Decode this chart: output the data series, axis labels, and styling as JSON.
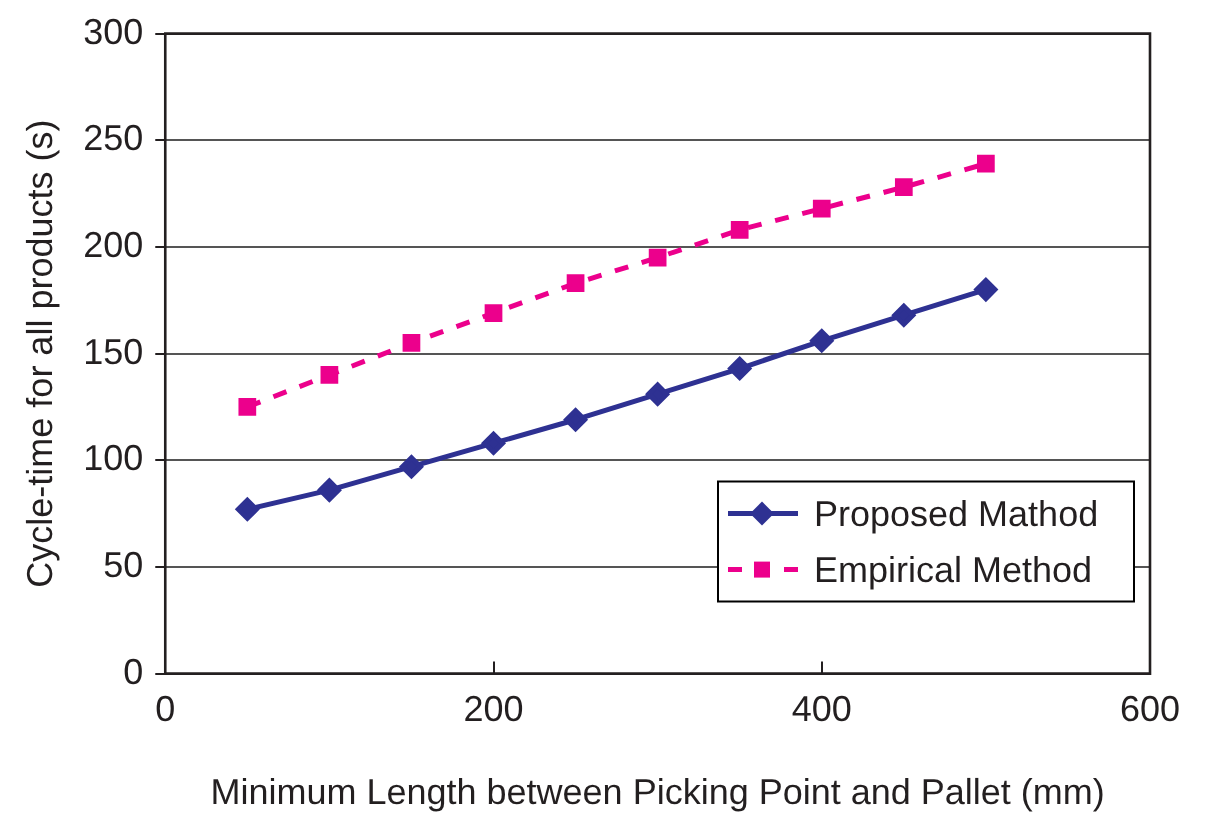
{
  "chart_data": {
    "type": "line",
    "xlabel": "Minimum Length between Picking Point and Pallet (mm)",
    "ylabel": "Cycle-time for all products (s)",
    "x": [
      50,
      100,
      150,
      200,
      250,
      300,
      350,
      400,
      450,
      500
    ],
    "series": [
      {
        "name": "Proposed Mathod",
        "color": "#2e3192",
        "values": [
          77,
          86,
          97,
          108,
          119,
          131,
          143,
          156,
          168,
          180
        ],
        "marker": "diamond",
        "line_style": "solid"
      },
      {
        "name": "Empirical Method",
        "color": "#ec008c",
        "values": [
          125,
          140,
          155,
          169,
          183,
          195,
          208,
          218,
          228,
          239
        ],
        "marker": "square",
        "line_style": "dashed"
      }
    ],
    "xlim": [
      0,
      600
    ],
    "xticks": [
      0,
      200,
      400,
      600
    ],
    "ylim": [
      0,
      300
    ],
    "yticks": [
      0,
      50,
      100,
      150,
      200,
      250,
      300
    ],
    "grid": "y",
    "legend": "bottom right"
  }
}
